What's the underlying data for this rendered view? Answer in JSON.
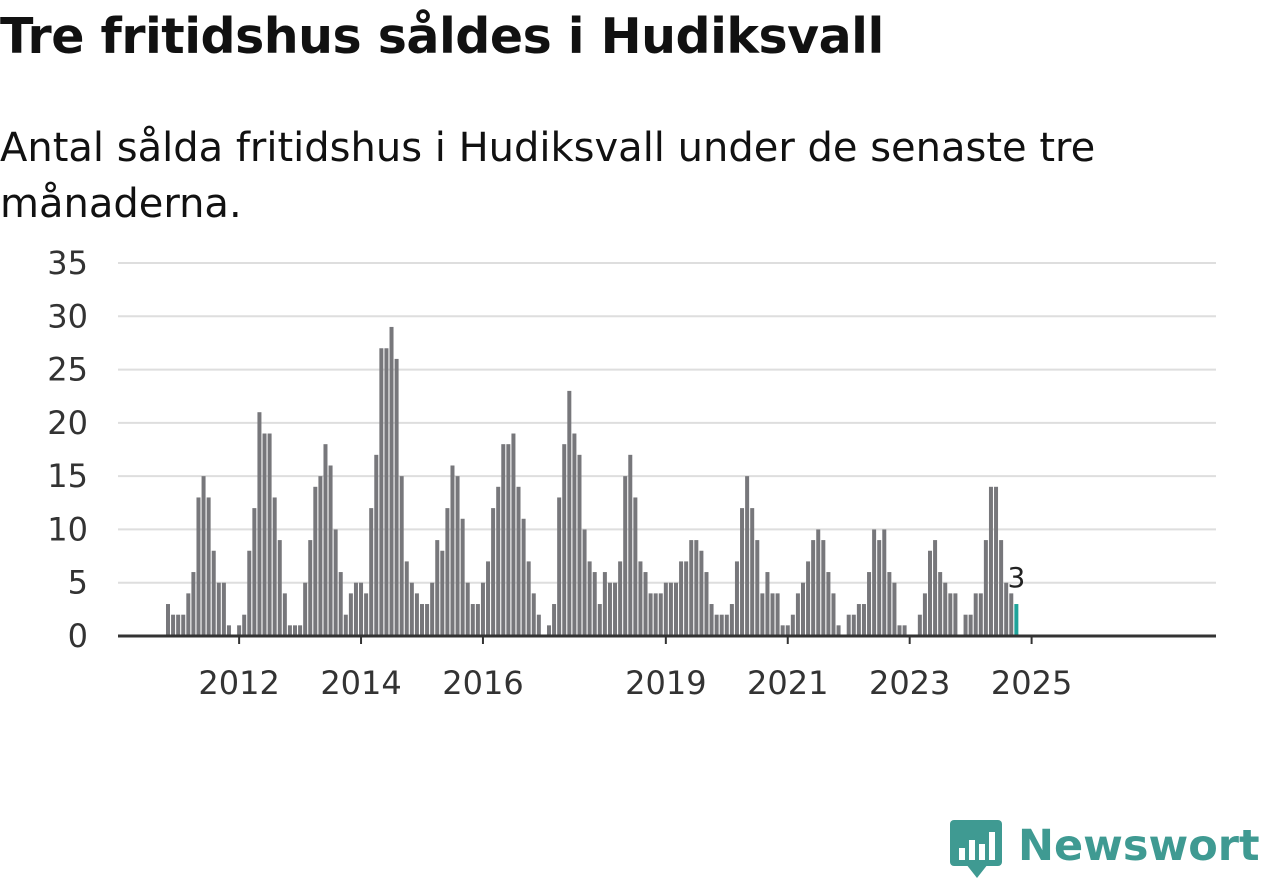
{
  "header": {
    "title": "Tre fritidshus såldes i Hudiksvall",
    "subtitle": "Antal sålda fritidshus i Hudiksvall under de senaste tre månaderna."
  },
  "colors": {
    "bar": "#77777b",
    "highlight": "#1fa39a",
    "grid": "#dedede",
    "axis": "#333333",
    "brand": "#3f9a92"
  },
  "logo": {
    "text": "Newsworthy",
    "icon": "newsworthy-chart-bubble-icon"
  },
  "chart_data": {
    "type": "bar",
    "title": "Tre fritidshus såldes i Hudiksvall",
    "subtitle": "Antal sålda fritidshus i Hudiksvall under de senaste tre månaderna.",
    "xlabel": "",
    "ylabel": "",
    "ylim": [
      0,
      35
    ],
    "yticks": [
      0,
      5,
      10,
      15,
      20,
      25,
      30,
      35
    ],
    "grid": true,
    "legend": "none",
    "start_period": "2011-01",
    "x_ticks": [
      {
        "label": "2012",
        "index": 14
      },
      {
        "label": "2014",
        "index": 38
      },
      {
        "label": "2016",
        "index": 62
      },
      {
        "label": "2019",
        "index": 98
      },
      {
        "label": "2021",
        "index": 122
      },
      {
        "label": "2023",
        "index": 146
      },
      {
        "label": "2025",
        "index": 170
      }
    ],
    "values": [
      3,
      2,
      2,
      2,
      4,
      6,
      13,
      15,
      13,
      8,
      5,
      5,
      1,
      0,
      1,
      2,
      8,
      12,
      21,
      19,
      19,
      13,
      9,
      4,
      1,
      1,
      1,
      5,
      9,
      14,
      15,
      18,
      16,
      10,
      6,
      2,
      4,
      5,
      5,
      4,
      12,
      17,
      27,
      27,
      29,
      26,
      15,
      7,
      5,
      4,
      3,
      3,
      5,
      9,
      8,
      12,
      16,
      15,
      11,
      5,
      3,
      3,
      5,
      7,
      12,
      14,
      18,
      18,
      19,
      14,
      11,
      7,
      4,
      2,
      0,
      1,
      3,
      13,
      18,
      23,
      19,
      17,
      10,
      7,
      6,
      3,
      6,
      5,
      5,
      7,
      15,
      17,
      13,
      7,
      6,
      4,
      4,
      4,
      5,
      5,
      5,
      7,
      7,
      9,
      9,
      8,
      6,
      3,
      2,
      2,
      2,
      3,
      7,
      12,
      15,
      12,
      9,
      4,
      6,
      4,
      4,
      1,
      1,
      2,
      4,
      5,
      7,
      9,
      10,
      9,
      6,
      4,
      1,
      0,
      2,
      2,
      3,
      3,
      6,
      10,
      9,
      10,
      6,
      5,
      1,
      1,
      0,
      0,
      2,
      4,
      8,
      9,
      6,
      5,
      4,
      4,
      0,
      2,
      2,
      4,
      4,
      9,
      14,
      14,
      9,
      5,
      4,
      3
    ],
    "highlight_last": true,
    "last_value_label": "3"
  }
}
